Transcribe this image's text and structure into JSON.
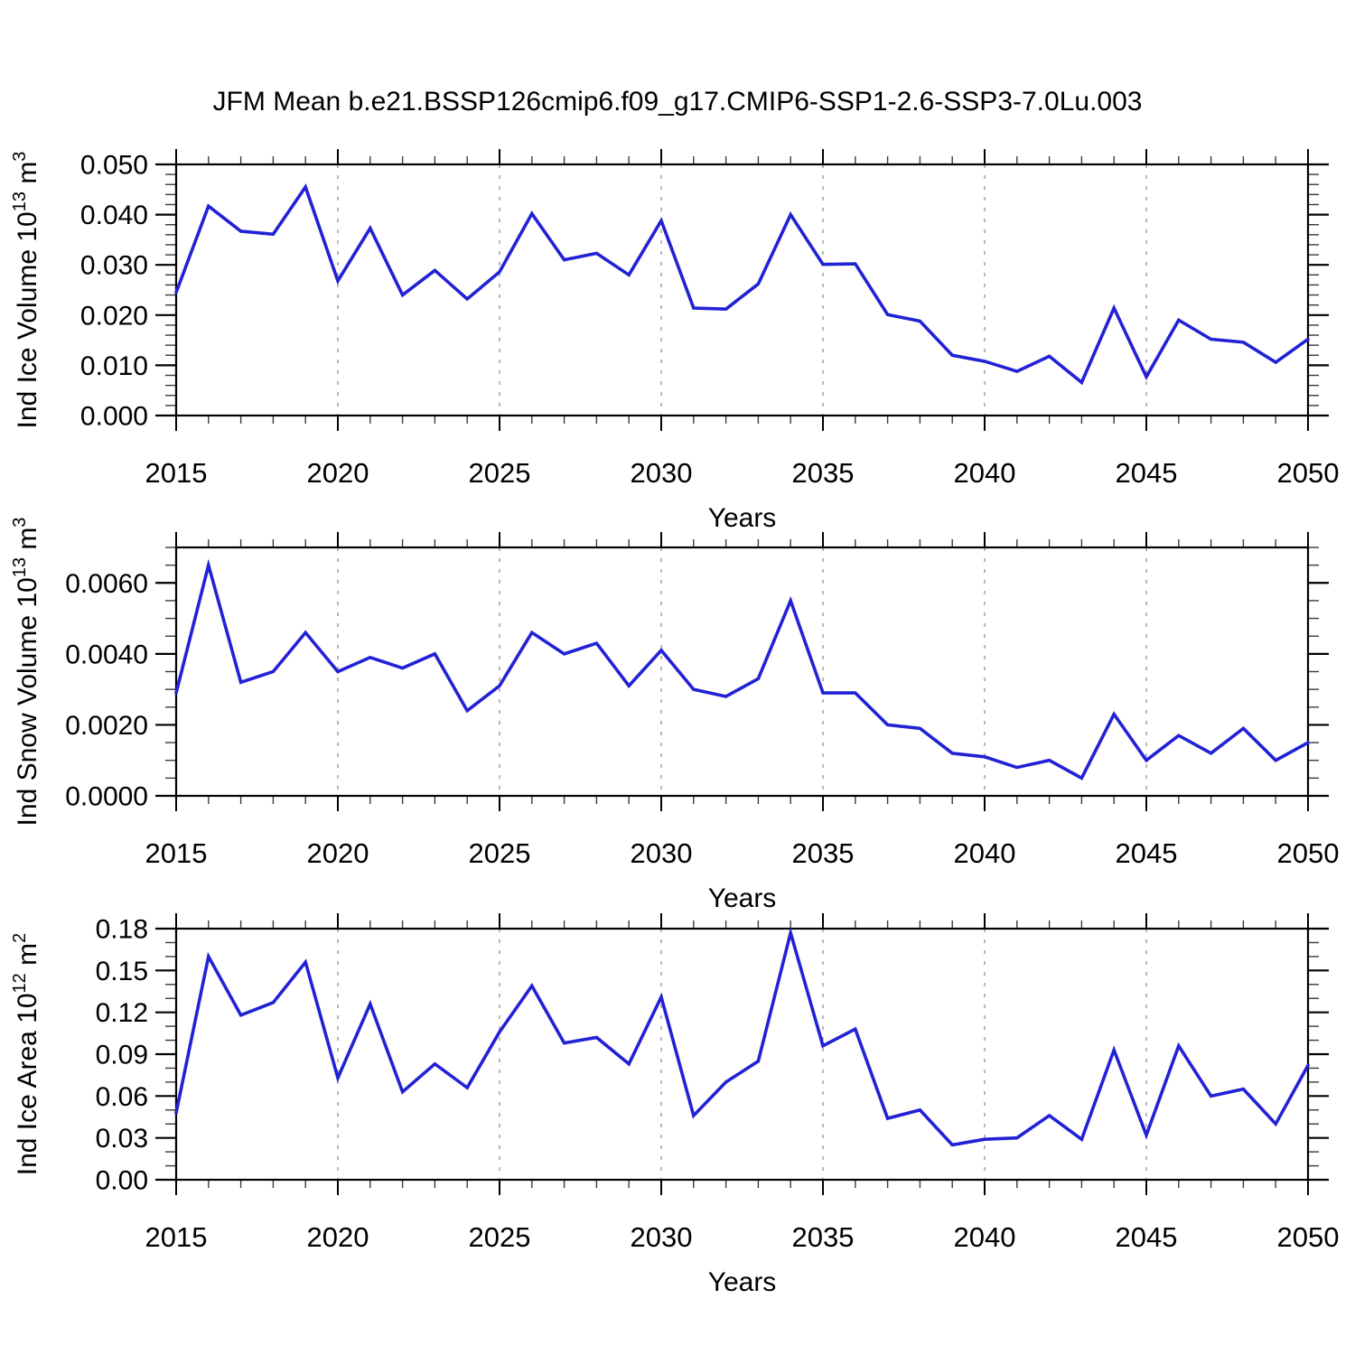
{
  "title": "JFM Mean b.e21.BSSP126cmip6.f09_g17.CMIP6-SSP1-2.6-SSP3-7.0Lu.003",
  "colors": {
    "line": "#2121D6",
    "axis": "#000000",
    "minor_tick": "#3a3a3a",
    "grid": "#999999",
    "background": "#FFFFFF",
    "text": "#000000"
  },
  "chart_data": [
    {
      "type": "line",
      "name": "ice-volume",
      "ylabel": "Ind Ice Volume 10^13 m^3",
      "xlabel": "Years",
      "ylim": [
        0,
        0.05
      ],
      "ytick_step": 0.01,
      "yminor_step": 0.002,
      "ydecimals": 3,
      "xlim": [
        2015,
        2050
      ],
      "xtick_step": 5,
      "xminor_step": 1,
      "grid": "vertical-dashed",
      "gridlines": [
        2020,
        2025,
        2030,
        2035,
        2040,
        2045
      ],
      "legend": "none",
      "x": [
        2015,
        2016,
        2017,
        2018,
        2019,
        2020,
        2021,
        2022,
        2023,
        2024,
        2025,
        2026,
        2027,
        2028,
        2029,
        2030,
        2031,
        2032,
        2033,
        2034,
        2035,
        2036,
        2037,
        2038,
        2039,
        2040,
        2041,
        2042,
        2043,
        2044,
        2045,
        2046,
        2047,
        2048,
        2049,
        2050
      ],
      "values": [
        0.0245,
        0.0417,
        0.0367,
        0.0361,
        0.0455,
        0.0268,
        0.0373,
        0.024,
        0.0289,
        0.0232,
        0.0286,
        0.0402,
        0.031,
        0.0323,
        0.028,
        0.0388,
        0.0214,
        0.0212,
        0.0262,
        0.04,
        0.0301,
        0.0302,
        0.0201,
        0.0188,
        0.012,
        0.0108,
        0.0088,
        0.0118,
        0.0066,
        0.0214,
        0.0077,
        0.019,
        0.0152,
        0.0146,
        0.0106,
        0.0152
      ]
    },
    {
      "type": "line",
      "name": "snow-volume",
      "ylabel": "Ind Snow Volume 10^13 m^3",
      "xlabel": "Years",
      "ylim": [
        0,
        0.007
      ],
      "ytick_step": 0.002,
      "yminor_step": 0.0005,
      "ydecimals": 4,
      "xlim": [
        2015,
        2050
      ],
      "xtick_step": 5,
      "xminor_step": 1,
      "grid": "vertical-dashed",
      "gridlines": [
        2020,
        2025,
        2030,
        2035,
        2040,
        2045
      ],
      "legend": "none",
      "x": [
        2015,
        2016,
        2017,
        2018,
        2019,
        2020,
        2021,
        2022,
        2023,
        2024,
        2025,
        2026,
        2027,
        2028,
        2029,
        2030,
        2031,
        2032,
        2033,
        2034,
        2035,
        2036,
        2037,
        2038,
        2039,
        2040,
        2041,
        2042,
        2043,
        2044,
        2045,
        2046,
        2047,
        2048,
        2049,
        2050
      ],
      "values": [
        0.0029,
        0.0065,
        0.0032,
        0.0035,
        0.0046,
        0.0035,
        0.0039,
        0.0036,
        0.004,
        0.0024,
        0.0031,
        0.0046,
        0.004,
        0.0043,
        0.0031,
        0.0041,
        0.003,
        0.0028,
        0.0033,
        0.0055,
        0.0029,
        0.0029,
        0.002,
        0.0019,
        0.0012,
        0.0011,
        0.0008,
        0.001,
        0.0005,
        0.0023,
        0.001,
        0.0017,
        0.0012,
        0.0019,
        0.001,
        0.0015
      ]
    },
    {
      "type": "line",
      "name": "ice-area",
      "ylabel": "Ind Ice Area 10^12 m^2",
      "xlabel": "Years",
      "ylim": [
        0,
        0.18
      ],
      "ytick_step": 0.03,
      "yminor_step": 0.01,
      "ydecimals": 2,
      "xlim": [
        2015,
        2050
      ],
      "xtick_step": 5,
      "xminor_step": 1,
      "grid": "vertical-dashed",
      "gridlines": [
        2020,
        2025,
        2030,
        2035,
        2040,
        2045
      ],
      "legend": "none",
      "x": [
        2015,
        2016,
        2017,
        2018,
        2019,
        2020,
        2021,
        2022,
        2023,
        2024,
        2025,
        2026,
        2027,
        2028,
        2029,
        2030,
        2031,
        2032,
        2033,
        2034,
        2035,
        2036,
        2037,
        2038,
        2039,
        2040,
        2041,
        2042,
        2043,
        2044,
        2045,
        2046,
        2047,
        2048,
        2049,
        2050
      ],
      "values": [
        0.048,
        0.16,
        0.118,
        0.127,
        0.156,
        0.073,
        0.126,
        0.063,
        0.083,
        0.066,
        0.106,
        0.139,
        0.098,
        0.102,
        0.083,
        0.131,
        0.046,
        0.07,
        0.085,
        0.177,
        0.096,
        0.108,
        0.044,
        0.05,
        0.025,
        0.029,
        0.03,
        0.046,
        0.029,
        0.093,
        0.032,
        0.096,
        0.06,
        0.065,
        0.04,
        0.082
      ]
    }
  ]
}
